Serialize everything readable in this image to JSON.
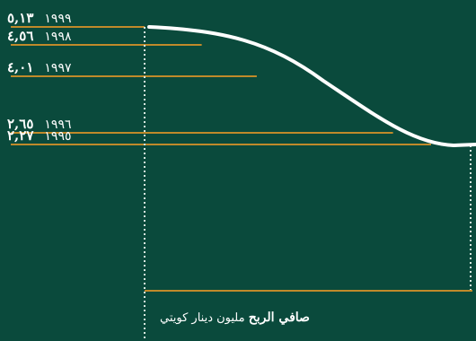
{
  "chart_data": {
    "type": "line",
    "title": "",
    "caption_bold": "صافي الربح",
    "caption_rest": "مليون دينار كويتي",
    "categories": [
      "١٩٩٥",
      "١٩٩٦",
      "١٩٩٧",
      "١٩٩٨",
      "١٩٩٩"
    ],
    "values": [
      2.27,
      2.65,
      4.01,
      4.56,
      5.13
    ],
    "value_labels": [
      "٢,٢٧",
      "٢,٦٥",
      "٤,٠١",
      "٤,٥٦",
      "٥,١٣"
    ],
    "ylim": [
      0,
      5.5
    ],
    "colors": {
      "background": "#0a4a3c",
      "bar": "#c08a2a",
      "curve": "#ffffff",
      "text": "#ffffff",
      "guide": "#d8e8e0"
    }
  }
}
